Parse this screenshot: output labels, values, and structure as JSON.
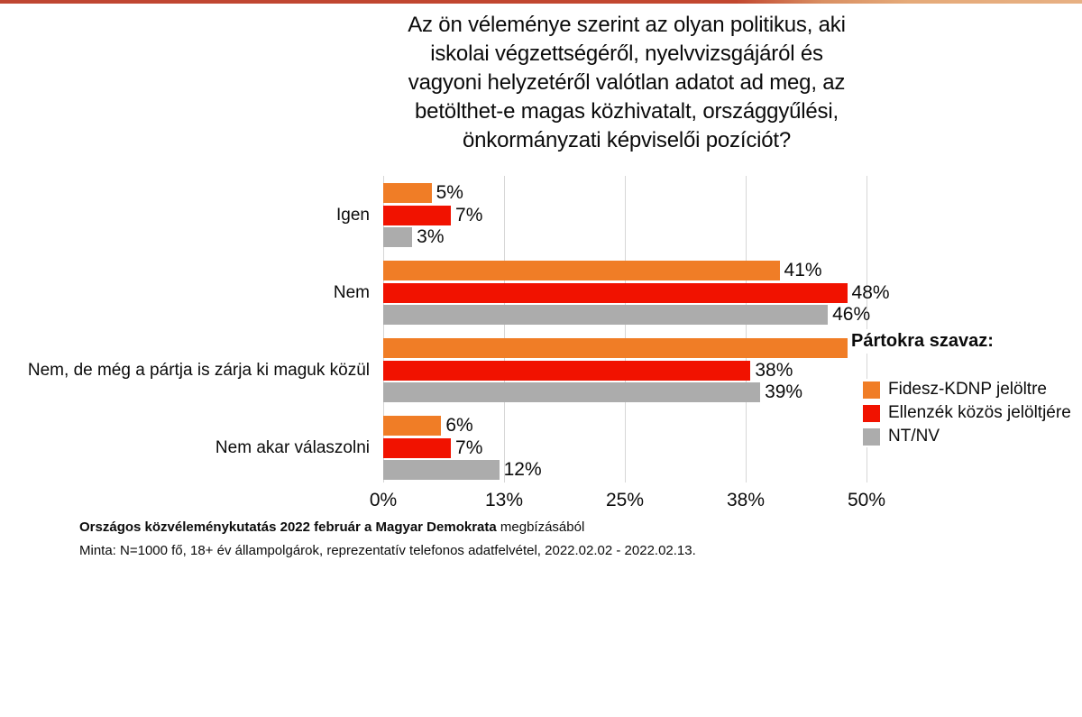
{
  "accent": {
    "top_bar_left_color": "#c2472f",
    "top_bar_right_color": "#e5aa79"
  },
  "chart_data": {
    "type": "bar",
    "orientation": "horizontal",
    "title": "Az ön véleménye szerint az olyan politikus, aki\niskolai végzettségéről, nyelvvizsgájáról és\nvagyoni helyzetéről valótlan adatot ad meg, az\nbetölthet-e magas közhivatalt, országgyűlési,\nönkormányzati képviselői pozíciót?",
    "categories": [
      "Igen",
      "Nem",
      "Nem, de még a pártja is zárja ki maguk közül",
      "Nem akar válaszolni"
    ],
    "series": [
      {
        "name": "Fidesz-KDNP jelöltre",
        "color": "#f07d26",
        "values": [
          5,
          41,
          48,
          6
        ],
        "labels": [
          "5%",
          "41%",
          "",
          "6%"
        ]
      },
      {
        "name": "Ellenzék közös jelöltjére",
        "color": "#f11200",
        "values": [
          7,
          48,
          38,
          7
        ],
        "labels": [
          "7%",
          "48%",
          "38%",
          "7%"
        ]
      },
      {
        "name": "NT/NV",
        "color": "#acacac",
        "values": [
          3,
          46,
          39,
          12
        ],
        "labels": [
          "3%",
          "46%",
          "39%",
          "12%"
        ]
      }
    ],
    "xlim": [
      0,
      50
    ],
    "x_ticks": [
      "0%",
      "13%",
      "25%",
      "38%",
      "50%"
    ],
    "gridlines": true,
    "legend_title": "Pártokra szavaz:",
    "legend_position": "right",
    "value_label_format": "percent"
  },
  "footer": {
    "line1_bold": "Országos közvéleménykutatás 2022 február a Magyar Demokrata",
    "line1_regular": " megbízásából",
    "line2": "Minta: N=1000 fő,  18+ év állampolgárok, reprezentatív telefonos adatfelvétel,  2022.02.02 - 2022.02.13."
  }
}
